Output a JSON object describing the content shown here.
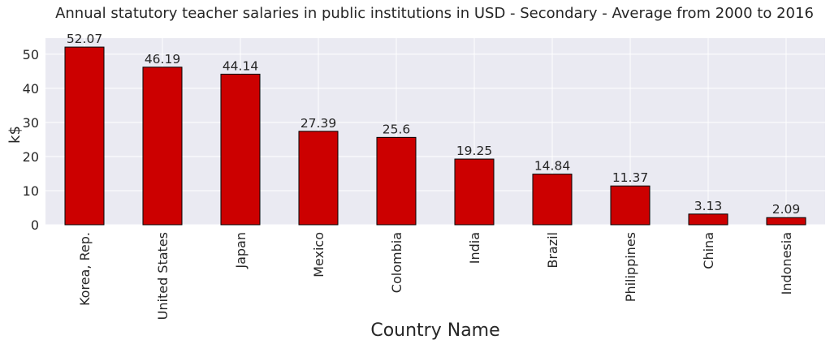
{
  "chart_data": {
    "type": "bar",
    "title": "Annual statutory teacher salaries in public institutions in USD - Secondary - Average from 2000 to 2016",
    "xlabel": "Country Name",
    "ylabel": "k$",
    "categories": [
      "Korea, Rep.",
      "United States",
      "Japan",
      "Mexico",
      "Colombia",
      "India",
      "Brazil",
      "Philippines",
      "China",
      "Indonesia"
    ],
    "values": [
      52.07,
      46.19,
      44.14,
      27.39,
      25.6,
      19.25,
      14.84,
      11.37,
      3.13,
      2.09
    ],
    "value_labels": [
      "52.07",
      "46.19",
      "44.14",
      "27.39",
      "25.6",
      "19.25",
      "14.84",
      "11.37",
      "3.13",
      "2.09"
    ],
    "ylim": [
      0,
      54.7
    ],
    "yticks": [
      0,
      10,
      20,
      30,
      40,
      50
    ],
    "bar_color": "#cc0000",
    "edge_color": "#000000",
    "background_color": "#eaeaf2",
    "grid": true,
    "legend": "none"
  }
}
